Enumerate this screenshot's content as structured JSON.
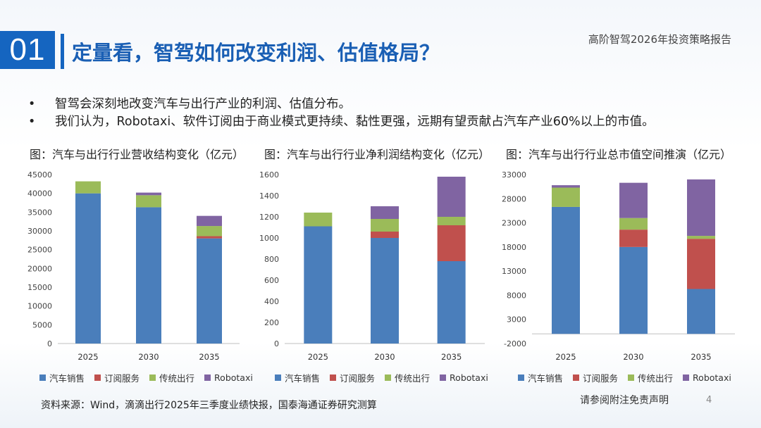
{
  "header": {
    "section_number": "01",
    "title": "定量看，智驾如何改变利润、估值格局？",
    "report_name": "高阶智驾2026年投资策略报告"
  },
  "bullets": [
    "智驾会深刻地改变汽车与出行产业的利润、估值分布。",
    "我们认为，Robotaxi、软件订阅由于商业模式更持续、黏性更强，远期有望贡献占汽车产业60%以上的市值。"
  ],
  "bullet_marker": "•",
  "colors": {
    "accent": "#1565c0",
    "series": [
      "#4a7ebb",
      "#c0504d",
      "#9bbb59",
      "#8064a2"
    ]
  },
  "legend": [
    "汽车销售",
    "订阅服务",
    "传统出行",
    "Robotaxi"
  ],
  "chart_data": [
    {
      "type": "bar",
      "stacked": true,
      "title": "图：汽车与出行行业营收结构变化（亿元）",
      "categories": [
        "2025",
        "2030",
        "2035"
      ],
      "series": [
        {
          "name": "汽车销售",
          "values": [
            40000,
            36300,
            28000
          ]
        },
        {
          "name": "订阅服务",
          "values": [
            0,
            0,
            600
          ]
        },
        {
          "name": "传统出行",
          "values": [
            3200,
            3200,
            2700
          ]
        },
        {
          "name": "Robotaxi",
          "values": [
            0,
            700,
            2700
          ]
        }
      ],
      "ylim": [
        0,
        45000
      ],
      "yticks": [
        0,
        5000,
        10000,
        15000,
        20000,
        25000,
        30000,
        35000,
        40000,
        45000
      ],
      "xlabel": "",
      "ylabel": ""
    },
    {
      "type": "bar",
      "stacked": true,
      "title": "图：汽车与出行行业净利润结构变化（亿元）",
      "categories": [
        "2025",
        "2030",
        "2035"
      ],
      "series": [
        {
          "name": "汽车销售",
          "values": [
            1110,
            1000,
            780
          ]
        },
        {
          "name": "订阅服务",
          "values": [
            0,
            60,
            340
          ]
        },
        {
          "name": "传统出行",
          "values": [
            130,
            120,
            80
          ]
        },
        {
          "name": "Robotaxi",
          "values": [
            0,
            120,
            380
          ]
        }
      ],
      "ylim": [
        0,
        1600
      ],
      "yticks": [
        0,
        200,
        400,
        600,
        800,
        1000,
        1200,
        1400,
        1600
      ],
      "xlabel": "",
      "ylabel": ""
    },
    {
      "type": "bar",
      "stacked": true,
      "title": "图：汽车与出行行业总市值空间推演（亿元）",
      "categories": [
        "2025",
        "2030",
        "2035"
      ],
      "series": [
        {
          "name": "汽车销售",
          "values": [
            26300,
            18000,
            9300
          ]
        },
        {
          "name": "订阅服务",
          "values": [
            0,
            3600,
            10400
          ]
        },
        {
          "name": "传统出行",
          "values": [
            4000,
            2400,
            600
          ]
        },
        {
          "name": "Robotaxi",
          "values": [
            500,
            7300,
            11700
          ]
        }
      ],
      "ylim": [
        -2000,
        33000
      ],
      "yticks": [
        -2000,
        3000,
        8000,
        13000,
        18000,
        23000,
        28000,
        33000
      ],
      "xlabel": "",
      "ylabel": ""
    }
  ],
  "footer": {
    "source": "资料来源：Wind，滴滴出行2025年三季度业绩快报，国泰海通证券研究测算",
    "disclaimer": "请参阅附注免责声明",
    "page_number": "4"
  }
}
